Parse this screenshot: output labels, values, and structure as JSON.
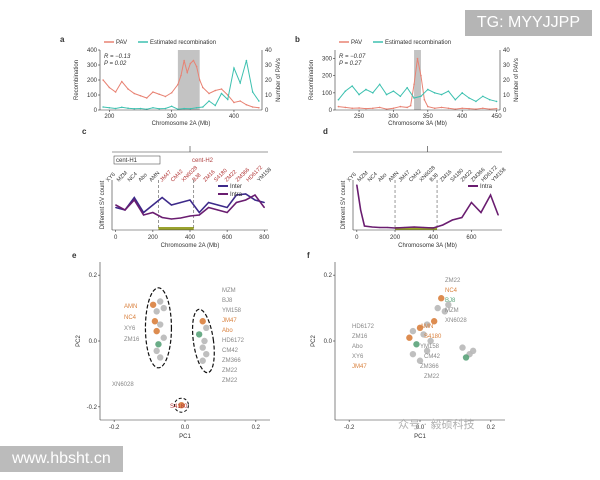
{
  "colors": {
    "pav": "#e88273",
    "recomb": "#3ec1b0",
    "inter": "#3d2a8a",
    "intra": "#6a1d70",
    "orange": "#d9803d",
    "grey": "#b8b8b8",
    "green": "#5aa37a",
    "axis": "#333333"
  },
  "watermarks": {
    "top": "TG: MYYJJPP",
    "bottom": "www.hbsht.cn",
    "center": "众号 · 毅硕科技"
  },
  "chart_data": [
    {
      "panel": "a",
      "type": "line",
      "legend": [
        "PAV",
        "Estimated recombination"
      ],
      "annotation": [
        "R = −0.13",
        "P = 0.02"
      ],
      "xlabel": "Chromosome 2A (Mb)",
      "ylabel": "Recombination",
      "ylabel_right": "Number of PAVs",
      "xlim": [
        185,
        445
      ],
      "xticks": [
        200,
        300,
        400
      ],
      "ylim": [
        0,
        400
      ],
      "yticks": [
        0,
        100,
        200,
        300,
        400
      ],
      "ylim_right": [
        0,
        40
      ],
      "yticks_right": [
        0,
        10,
        20,
        30,
        40
      ],
      "highlight": [
        310,
        345
      ],
      "series": [
        {
          "name": "PAV",
          "x": [
            190,
            200,
            210,
            220,
            230,
            240,
            250,
            260,
            270,
            280,
            290,
            300,
            310,
            315,
            320,
            325,
            330,
            335,
            340,
            345,
            350,
            360,
            370,
            380,
            390,
            400,
            410,
            420,
            430,
            440
          ],
          "values": [
            200,
            150,
            120,
            190,
            140,
            110,
            95,
            80,
            120,
            105,
            90,
            115,
            170,
            230,
            330,
            250,
            310,
            330,
            290,
            200,
            150,
            110,
            130,
            140,
            100,
            50,
            60,
            35,
            20,
            15
          ]
        },
        {
          "name": "Estimated recombination",
          "x": [
            190,
            200,
            210,
            220,
            230,
            240,
            250,
            260,
            270,
            280,
            290,
            300,
            310,
            320,
            330,
            340,
            350,
            360,
            370,
            380,
            390,
            400,
            410,
            420,
            430,
            440
          ],
          "values": [
            20,
            15,
            10,
            18,
            12,
            8,
            10,
            5,
            15,
            8,
            10,
            25,
            5,
            10,
            8,
            15,
            20,
            60,
            30,
            110,
            70,
            280,
            180,
            330,
            120,
            60
          ]
        }
      ]
    },
    {
      "panel": "b",
      "type": "line",
      "legend": [
        "PAV",
        "Estimated recombination"
      ],
      "annotation": [
        "R = −0.07",
        "P = 0.27"
      ],
      "xlabel": "Chromosome 3A (Mb)",
      "ylabel": "Recombination",
      "ylabel_right": "Number of PAVs",
      "xlim": [
        215,
        455
      ],
      "xticks": [
        250,
        300,
        350,
        400,
        450
      ],
      "ylim": [
        0,
        350
      ],
      "yticks": [
        0,
        100,
        200,
        300
      ],
      "ylim_right": [
        0,
        40
      ],
      "yticks_right": [
        0,
        10,
        20,
        30,
        40
      ],
      "highlight": [
        330,
        340
      ],
      "series": [
        {
          "name": "PAV",
          "x": [
            220,
            230,
            240,
            250,
            260,
            270,
            280,
            290,
            300,
            310,
            320,
            325,
            330,
            335,
            340,
            345,
            350,
            360,
            370,
            380,
            390,
            400,
            410,
            420,
            430,
            440,
            450
          ],
          "values": [
            20,
            15,
            10,
            12,
            8,
            10,
            15,
            5,
            10,
            20,
            15,
            25,
            150,
            300,
            200,
            60,
            20,
            10,
            15,
            10,
            5,
            10,
            8,
            5,
            10,
            5,
            8
          ]
        },
        {
          "name": "Estimated recombination",
          "x": [
            220,
            230,
            240,
            250,
            260,
            270,
            280,
            290,
            300,
            310,
            320,
            330,
            340,
            350,
            360,
            370,
            380,
            390,
            400,
            410,
            420,
            430,
            440,
            450
          ],
          "values": [
            60,
            110,
            140,
            90,
            120,
            100,
            150,
            90,
            110,
            80,
            130,
            70,
            80,
            120,
            100,
            90,
            110,
            60,
            100,
            70,
            50,
            80,
            60,
            50
          ]
        }
      ]
    },
    {
      "panel": "c",
      "type": "line",
      "tree_labels": [
        "cent-H1",
        "cent-H2"
      ],
      "accessions": [
        "XY6",
        "MZM",
        "NC4",
        "Abo",
        "AMN",
        "JM47",
        "CM42",
        "XN6028",
        "BJ8",
        "ZM16",
        "S4180",
        "ZM22",
        "ZM366",
        "HD6172",
        "YM158"
      ],
      "legend": [
        "Inter",
        "Intra"
      ],
      "xlabel": "Chromosome 2A (Mb)",
      "ylabel": "Different SV count",
      "xlim": [
        -20,
        820
      ],
      "xticks": [
        0,
        200,
        400,
        600,
        800
      ],
      "ylim": [
        0,
        100
      ],
      "dividers": [
        230,
        420
      ],
      "series": [
        {
          "name": "Inter",
          "x": [
            0,
            50,
            100,
            150,
            200,
            250,
            300,
            350,
            400,
            450,
            500,
            550,
            600,
            650,
            700,
            750,
            800
          ],
          "values": [
            45,
            40,
            65,
            35,
            50,
            65,
            50,
            55,
            60,
            35,
            55,
            50,
            45,
            70,
            72,
            60,
            55
          ]
        },
        {
          "name": "Intra",
          "x": [
            0,
            50,
            100,
            150,
            200,
            250,
            300,
            350,
            400,
            450,
            500,
            550,
            600,
            650,
            700,
            750,
            800
          ],
          "values": [
            50,
            40,
            60,
            30,
            35,
            25,
            22,
            24,
            28,
            30,
            45,
            40,
            35,
            55,
            60,
            70,
            45
          ]
        }
      ]
    },
    {
      "panel": "d",
      "type": "line",
      "accessions": [
        "XY6",
        "MZM",
        "NC4",
        "Abo",
        "AMN",
        "JM47",
        "CM42",
        "XN6028",
        "BJ8",
        "ZM16",
        "S4180",
        "ZM22",
        "ZM366",
        "HD6172",
        "YM158"
      ],
      "legend": [
        "Intra"
      ],
      "xlabel": "Chromosome 3A (Mb)",
      "ylabel": "Different SV count",
      "xlim": [
        -20,
        760
      ],
      "xticks": [
        0,
        200,
        400,
        600
      ],
      "ylim": [
        0,
        100
      ],
      "dividers": [
        200,
        420
      ],
      "series": [
        {
          "name": "Intra",
          "x": [
            0,
            20,
            40,
            80,
            120,
            160,
            200,
            250,
            300,
            350,
            400,
            450,
            500,
            550,
            600,
            650,
            700,
            740
          ],
          "values": [
            90,
            40,
            8,
            6,
            5,
            5,
            4,
            5,
            6,
            5,
            4,
            10,
            20,
            25,
            55,
            35,
            70,
            30
          ]
        }
      ]
    },
    {
      "panel": "e",
      "type": "scatter",
      "xlabel": "PC1",
      "ylabel": "PC2",
      "xlim": [
        -0.24,
        0.24
      ],
      "xticks": [
        -0.2,
        0.0,
        0.2
      ],
      "ylim": [
        -0.24,
        0.24
      ],
      "yticks": [
        -0.2,
        0.0,
        0.2
      ],
      "labels_left": [
        "AMN",
        "NC4",
        "XY6",
        "ZM16"
      ],
      "labels_bottom": [
        "XN6028"
      ],
      "labels_right": [
        "MZM",
        "BJ8",
        "YM158",
        "JM47",
        "Abo",
        "HD6172",
        "CM42",
        "ZM366",
        "ZM22",
        "ZM22"
      ],
      "label_outlier": "S4180",
      "points": [
        {
          "x": -0.09,
          "y": 0.11,
          "c": "orange"
        },
        {
          "x": -0.07,
          "y": 0.12,
          "c": "grey"
        },
        {
          "x": -0.08,
          "y": 0.09,
          "c": "grey"
        },
        {
          "x": -0.06,
          "y": 0.1,
          "c": "grey"
        },
        {
          "x": -0.085,
          "y": 0.06,
          "c": "orange"
        },
        {
          "x": -0.07,
          "y": 0.05,
          "c": "grey"
        },
        {
          "x": -0.08,
          "y": 0.03,
          "c": "orange"
        },
        {
          "x": -0.06,
          "y": 0.01,
          "c": "grey"
        },
        {
          "x": -0.075,
          "y": -0.01,
          "c": "green"
        },
        {
          "x": -0.08,
          "y": -0.03,
          "c": "grey"
        },
        {
          "x": -0.07,
          "y": -0.05,
          "c": "grey"
        },
        {
          "x": 0.05,
          "y": 0.06,
          "c": "orange"
        },
        {
          "x": 0.06,
          "y": 0.04,
          "c": "grey"
        },
        {
          "x": 0.04,
          "y": 0.02,
          "c": "green"
        },
        {
          "x": 0.055,
          "y": 0.0,
          "c": "grey"
        },
        {
          "x": 0.05,
          "y": -0.02,
          "c": "grey"
        },
        {
          "x": 0.06,
          "y": -0.04,
          "c": "grey"
        },
        {
          "x": 0.05,
          "y": -0.06,
          "c": "grey"
        },
        {
          "x": -0.01,
          "y": -0.195,
          "c": "orange"
        }
      ]
    },
    {
      "panel": "f",
      "type": "scatter",
      "xlabel": "PC1",
      "ylabel": "PC2",
      "xlim": [
        -0.24,
        0.24
      ],
      "xticks": [
        -0.2,
        0.0,
        0.2
      ],
      "ylim": [
        -0.24,
        0.24
      ],
      "yticks": [
        0.0,
        0.2
      ],
      "labels_left": [
        "HD6172",
        "ZM16",
        "Abo",
        "XY6",
        "JM47"
      ],
      "labels_right": [
        "ZM22",
        "NC4",
        "BJ8",
        "MZM",
        "XN6028"
      ],
      "labels_middle": [
        "AMN",
        "S4180",
        "YM158",
        "CM42",
        "ZM366",
        "ZM22"
      ],
      "points": [
        {
          "x": 0.06,
          "y": 0.13,
          "c": "orange"
        },
        {
          "x": 0.08,
          "y": 0.11,
          "c": "grey"
        },
        {
          "x": 0.05,
          "y": 0.1,
          "c": "grey"
        },
        {
          "x": 0.07,
          "y": 0.09,
          "c": "grey"
        },
        {
          "x": 0.04,
          "y": 0.06,
          "c": "orange"
        },
        {
          "x": 0.02,
          "y": 0.05,
          "c": "grey"
        },
        {
          "x": 0.0,
          "y": 0.04,
          "c": "orange"
        },
        {
          "x": -0.02,
          "y": 0.03,
          "c": "grey"
        },
        {
          "x": 0.01,
          "y": 0.02,
          "c": "grey"
        },
        {
          "x": -0.03,
          "y": 0.01,
          "c": "orange"
        },
        {
          "x": 0.03,
          "y": 0.0,
          "c": "grey"
        },
        {
          "x": -0.01,
          "y": -0.01,
          "c": "green"
        },
        {
          "x": 0.02,
          "y": -0.03,
          "c": "grey"
        },
        {
          "x": -0.02,
          "y": -0.04,
          "c": "grey"
        },
        {
          "x": 0.0,
          "y": -0.06,
          "c": "grey"
        },
        {
          "x": 0.12,
          "y": -0.02,
          "c": "grey"
        },
        {
          "x": 0.14,
          "y": -0.04,
          "c": "grey"
        },
        {
          "x": 0.13,
          "y": -0.05,
          "c": "green"
        },
        {
          "x": 0.15,
          "y": -0.03,
          "c": "grey"
        }
      ]
    }
  ]
}
